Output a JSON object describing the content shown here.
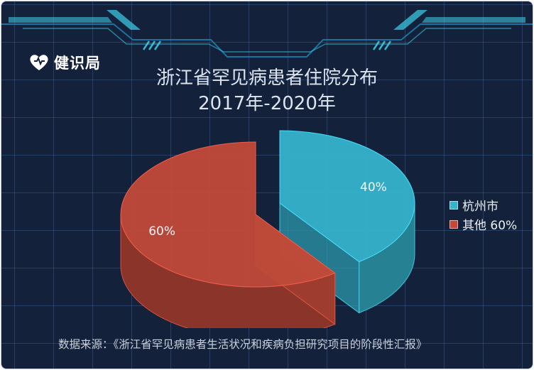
{
  "brand": {
    "name": "健识局",
    "icon": "heart-logo-icon"
  },
  "title_lines": [
    "浙江省罕见病患者住院分布",
    "2017年-2020年"
  ],
  "source": "数据来源：《浙江省罕见病患者生活状况和疾病负担研究项目的阶段性汇报》",
  "colors": {
    "background": "#13213a",
    "grid": "#3f6394",
    "accent": "#3fd0ea"
  },
  "chart_data": {
    "type": "pie",
    "style": "3d-exploded",
    "legend_position": "right",
    "slices": [
      {
        "label": "40%",
        "legend": "杭州市",
        "value": 40,
        "color": "#35b3cb"
      },
      {
        "label": "60%",
        "legend": "其他 60%",
        "value": 60,
        "color": "#c14a3a"
      }
    ]
  }
}
